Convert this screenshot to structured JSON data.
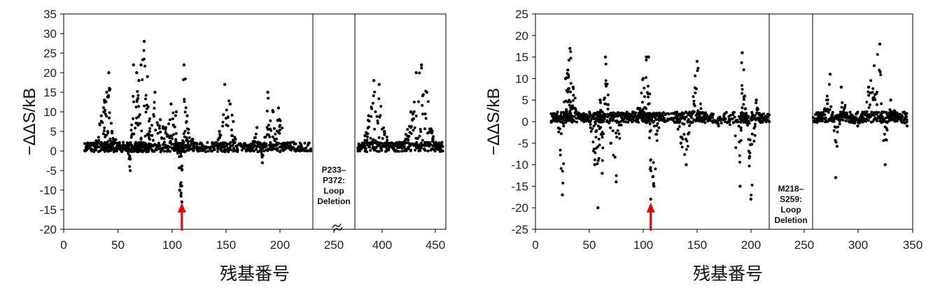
{
  "chart_data": [
    {
      "type": "scatter",
      "xlabel": "残基番号",
      "ylabel": "−ΔΔS/kB",
      "ylim": [
        -20,
        35
      ],
      "yticks": [
        -20,
        -15,
        -10,
        -5,
        0,
        5,
        10,
        15,
        20,
        25,
        30,
        35
      ],
      "xtick_labels": [
        "0",
        "50",
        "100",
        "150",
        "200",
        "250",
        "400",
        "450"
      ],
      "grid": false,
      "deletion_annotation": [
        "P233–",
        "P372:",
        "Loop",
        "Deletion"
      ],
      "arrow_residue": 110,
      "series": [
        {
          "segment": "left",
          "x": [
            20,
            25,
            30,
            35,
            38,
            40,
            42,
            45,
            50,
            55,
            60,
            62,
            65,
            68,
            70,
            72,
            75,
            78,
            80,
            85,
            90,
            95,
            100,
            105,
            108,
            110,
            112,
            115,
            120,
            125,
            130,
            140,
            145,
            150,
            155,
            160,
            170,
            175,
            180,
            185,
            190,
            195,
            200,
            205,
            210,
            220,
            230
          ],
          "y": [
            0,
            2,
            2,
            9,
            13,
            15,
            20,
            5,
            2,
            1,
            1,
            -5,
            22,
            20,
            18,
            22,
            28,
            19,
            5,
            15,
            8,
            6,
            12,
            10,
            -10,
            -13,
            22,
            9,
            3,
            0,
            1,
            1,
            5,
            17,
            12,
            3,
            0,
            1,
            6,
            -3,
            15,
            10,
            11,
            2,
            1,
            0,
            0
          ]
        },
        {
          "segment": "right",
          "x": [
            375,
            380,
            385,
            390,
            395,
            400,
            405,
            410,
            415,
            420,
            425,
            430,
            435,
            440,
            445,
            450,
            455
          ],
          "y": [
            0,
            2,
            9,
            18,
            17,
            5,
            2,
            0,
            1,
            3,
            10,
            20,
            22,
            15,
            5,
            1,
            0
          ]
        }
      ]
    },
    {
      "type": "scatter",
      "xlabel": "残基番号",
      "ylabel": "−ΔΔS/kB",
      "ylim": [
        -25,
        25
      ],
      "yticks": [
        -25,
        -20,
        -15,
        -10,
        -5,
        0,
        5,
        10,
        15,
        20,
        25
      ],
      "xtick_labels": [
        "0",
        "50",
        "100",
        "150",
        "200",
        "250",
        "300",
        "350"
      ],
      "grid": false,
      "deletion_annotation": [
        "M218–",
        "S259:",
        "Loop",
        "Deletion"
      ],
      "arrow_residue": 107,
      "series": [
        {
          "segment": "left",
          "x": [
            15,
            20,
            25,
            28,
            30,
            32,
            35,
            40,
            45,
            50,
            55,
            58,
            60,
            62,
            65,
            70,
            75,
            80,
            85,
            90,
            95,
            100,
            103,
            105,
            107,
            110,
            115,
            120,
            130,
            135,
            140,
            145,
            150,
            155,
            160,
            170,
            180,
            190,
            192,
            195,
            200,
            205,
            210,
            217
          ],
          "y": [
            0,
            1,
            -17,
            10,
            12,
            17,
            8,
            2,
            0,
            1,
            -10,
            -20,
            5,
            -12,
            15,
            -5,
            -14,
            2,
            1,
            0,
            3,
            10,
            15,
            15,
            -18,
            -15,
            2,
            0,
            1,
            -5,
            -10,
            2,
            14,
            0,
            1,
            -1,
            0,
            -15,
            16,
            3,
            -18,
            5,
            1,
            0
          ]
        },
        {
          "segment": "right",
          "x": [
            260,
            265,
            270,
            275,
            280,
            285,
            290,
            295,
            300,
            305,
            310,
            315,
            320,
            325,
            330,
            335,
            340,
            345
          ],
          "y": [
            0,
            1,
            3,
            11,
            -13,
            8,
            2,
            0,
            -1,
            0,
            8,
            13,
            18,
            -10,
            5,
            2,
            0,
            -1
          ]
        }
      ]
    }
  ]
}
